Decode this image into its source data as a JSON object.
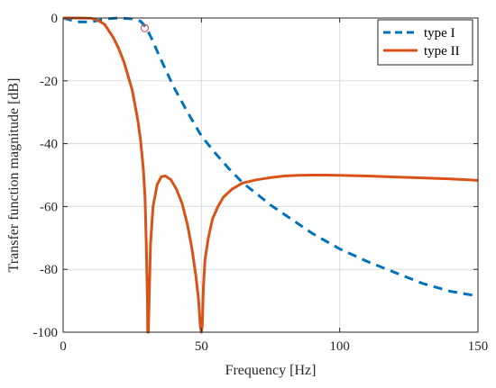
{
  "chart_data": {
    "type": "line",
    "xlabel": "Frequency [Hz]",
    "ylabel": "Transfer function magnitude [dB]",
    "xlim": [
      0,
      150
    ],
    "ylim": [
      -100,
      0
    ],
    "xticks": [
      0,
      50,
      100,
      150
    ],
    "yticks": [
      0,
      -20,
      -40,
      -60,
      -80,
      -100
    ],
    "grid": true,
    "legend_position": "top-right",
    "series": [
      {
        "name": "type I",
        "color": "#0072BD",
        "line_style": "dashed",
        "x": [
          0,
          5,
          10,
          15,
          20,
          25,
          28,
          30,
          32,
          35,
          40,
          45,
          50,
          55,
          60,
          65,
          70,
          75,
          80,
          90,
          100,
          110,
          120,
          130,
          140,
          150
        ],
        "y": [
          0,
          -1.2,
          -1.3,
          -0.3,
          0,
          -0.3,
          -1,
          -3,
          -6.5,
          -12.5,
          -22,
          -30,
          -37.5,
          -43,
          -48,
          -52.5,
          -56,
          -59.5,
          -62.5,
          -68.5,
          -73.5,
          -77.5,
          -81,
          -84.5,
          -87,
          -88.5
        ]
      },
      {
        "name": "type II",
        "color": "#D95319",
        "line_style": "solid",
        "x": [
          0,
          5,
          10,
          12,
          15,
          18,
          20,
          22,
          25,
          27,
          28,
          29,
          29.6,
          30.1,
          30.5,
          30.6,
          30.8,
          31.2,
          31.6,
          32.5,
          34,
          35.5,
          37,
          39,
          41,
          43,
          45,
          46.5,
          48,
          49,
          49.6,
          50,
          50.3,
          50.7,
          51.3,
          52.5,
          54,
          56,
          58,
          61,
          65,
          70,
          75,
          80,
          85,
          90,
          95,
          100,
          110,
          120,
          130,
          140,
          150
        ],
        "y": [
          0,
          0,
          -0.1,
          -0.5,
          -2,
          -6,
          -9.5,
          -14,
          -23,
          -32.5,
          -39,
          -48,
          -57,
          -73,
          -90,
          -100,
          -100,
          -86,
          -72,
          -60,
          -53,
          -50.5,
          -50.3,
          -51.5,
          -54.5,
          -59,
          -66,
          -73,
          -82,
          -90,
          -98,
          -100,
          -98,
          -86,
          -77,
          -70,
          -64,
          -60,
          -57,
          -54.5,
          -52.5,
          -51.5,
          -50.8,
          -50.3,
          -50.1,
          -50,
          -50,
          -50.1,
          -50.3,
          -50.6,
          -50.9,
          -51.2,
          -51.7
        ]
      }
    ],
    "markers": [
      {
        "x": 29.5,
        "y": -3.2,
        "shape": "circle",
        "color": "#D9535F",
        "fill": "none"
      }
    ]
  }
}
